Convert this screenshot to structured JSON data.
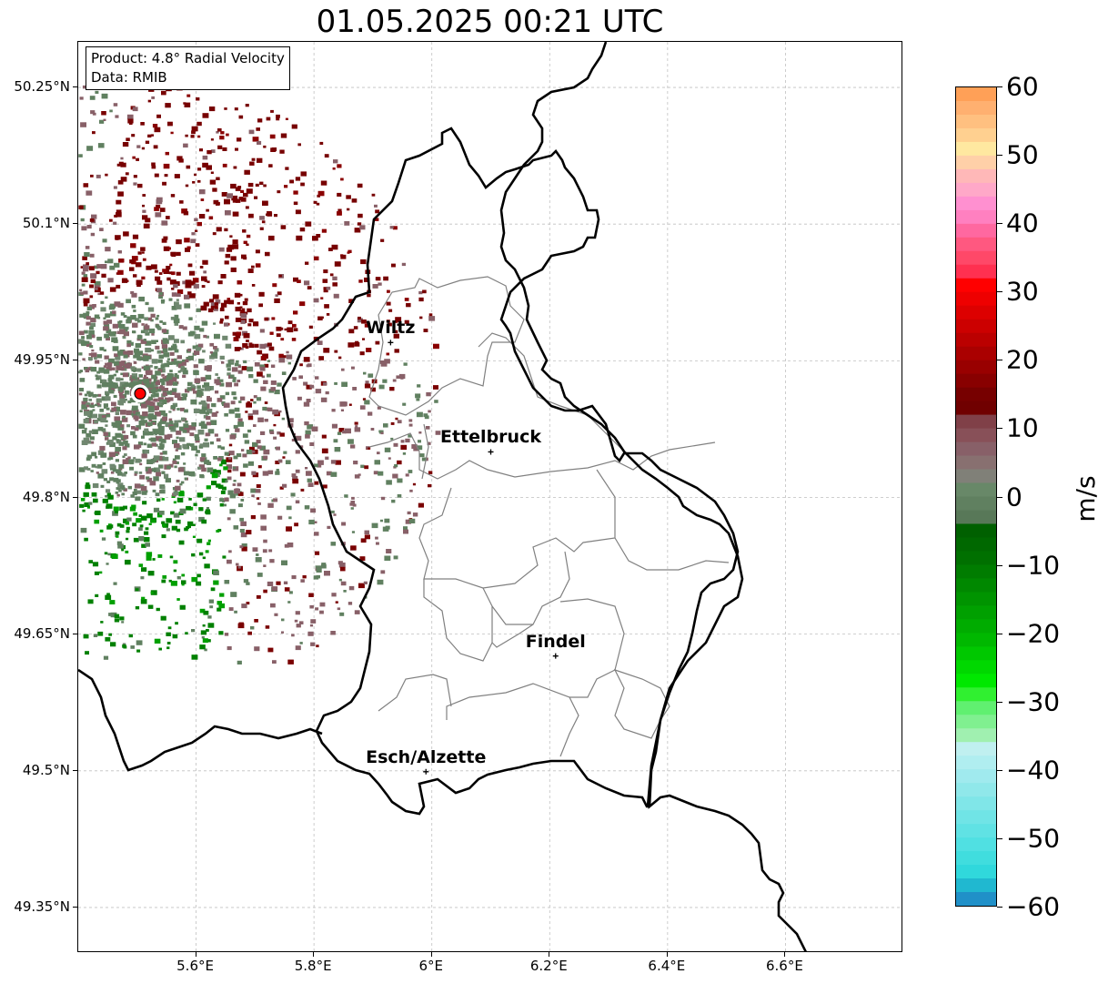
{
  "title": "01.05.2025 00:21 UTC",
  "info": {
    "product": "Product: 4.8° Radial Velocity",
    "data": "Data: RMIB"
  },
  "lat_labels": [
    "50.25°N",
    "50.1°N",
    "49.95°N",
    "49.8°N",
    "49.65°N",
    "49.5°N",
    "49.35°N"
  ],
  "lat_values": [
    50.25,
    50.1,
    49.95,
    49.8,
    49.65,
    49.5,
    49.35
  ],
  "lon_labels": [
    "5.6°E",
    "5.8°E",
    "6°E",
    "6.2°E",
    "6.4°E",
    "6.6°E"
  ],
  "lon_values": [
    5.6,
    5.8,
    6.0,
    6.2,
    6.4,
    6.6
  ],
  "extent": {
    "lon_min": 5.4,
    "lon_max": 6.8,
    "lat_min": 49.3,
    "lat_max": 50.3
  },
  "cities": [
    {
      "name": "Wiltz",
      "lon": 5.93,
      "lat": 49.97
    },
    {
      "name": "Ettelbruck",
      "lon": 6.1,
      "lat": 49.85
    },
    {
      "name": "Findel",
      "lon": 6.21,
      "lat": 49.626
    },
    {
      "name": "Esch/Alzette",
      "lon": 5.99,
      "lat": 49.499
    }
  ],
  "radar_site": {
    "lon": 5.505,
    "lat": 49.914,
    "color": "#ff0000"
  },
  "colorbar": {
    "label": "m/s",
    "min": -60,
    "max": 60,
    "tick_labels": [
      "60",
      "50",
      "40",
      "30",
      "20",
      "10",
      "0",
      "−10",
      "−20",
      "−30",
      "−40",
      "−50",
      "−60"
    ],
    "tick_values": [
      60,
      50,
      40,
      30,
      20,
      10,
      0,
      -10,
      -20,
      -30,
      -40,
      -50,
      -60
    ],
    "colors_top_to_bottom": [
      "#ffa057",
      "#ffb070",
      "#ffc080",
      "#ffd090",
      "#ffe8a0",
      "#ffd0a8",
      "#ffb8b8",
      "#ffa8c8",
      "#ff90d0",
      "#ff80c0",
      "#ff68a0",
      "#ff5880",
      "#ff4868",
      "#ff3050",
      "#ff0000",
      "#ee0000",
      "#dd0000",
      "#cc0000",
      "#bb0000",
      "#aa0000",
      "#990000",
      "#880000",
      "#770000",
      "#700000",
      "#804048",
      "#885058",
      "#886068",
      "#887070",
      "#808078",
      "#688868",
      "#608060",
      "#587858",
      "#006000",
      "#006800",
      "#007000",
      "#007c00",
      "#008800",
      "#009400",
      "#00a000",
      "#00ac00",
      "#00b800",
      "#00c800",
      "#00d800",
      "#00e800",
      "#30f030",
      "#60f070",
      "#80f090",
      "#a0f0b0",
      "#c0f0f0",
      "#b0eef0",
      "#a0eaee",
      "#90e8ea",
      "#80e6e8",
      "#70e4e6",
      "#60e2e4",
      "#50e0e2",
      "#40ddde",
      "#30d8dc",
      "#20b8d0",
      "#2090c8"
    ],
    "neutral_colors": {
      "positive_weak": "#886068",
      "negative_weak": "#608060",
      "positive_strong": "#770000",
      "negative_strong": "#008000"
    }
  },
  "boundary_colors": {
    "country": "#000000",
    "canton": "#808080",
    "grid": "#c0c0c0"
  }
}
